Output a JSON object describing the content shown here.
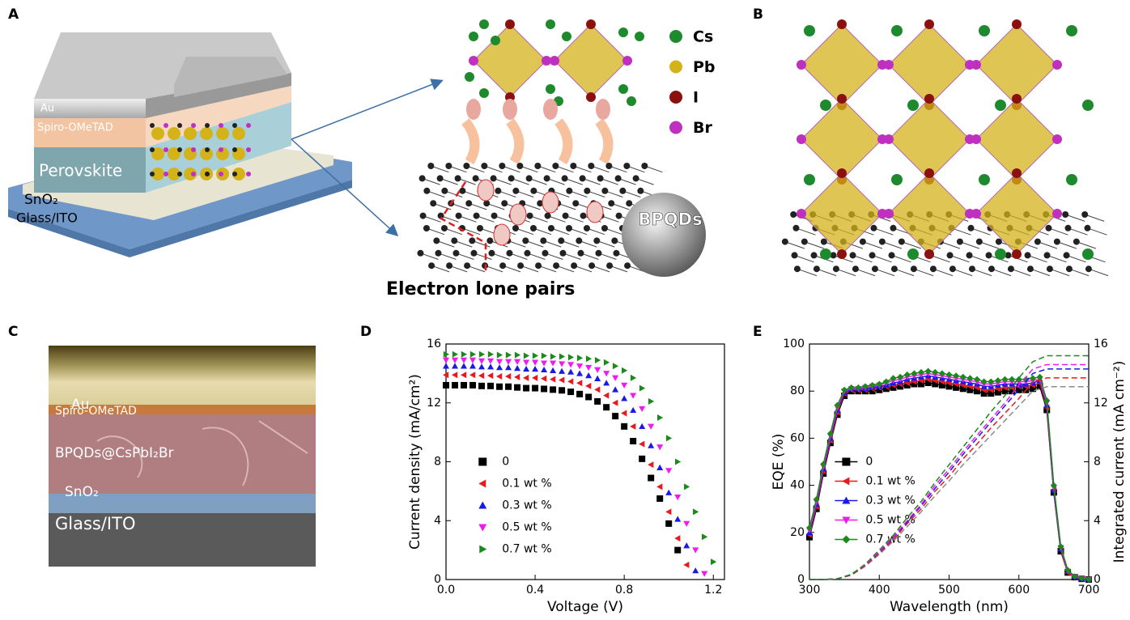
{
  "panel_labels": [
    "A",
    "B",
    "C",
    "D",
    "E"
  ],
  "panel_a": {
    "layers": [
      "Au",
      "Spiro-OMeTAD",
      "Perovskite",
      "SnO₂",
      "Glass/ITO"
    ],
    "legend": [
      {
        "name": "Cs",
        "color": "#1e8a2e"
      },
      {
        "name": "Pb",
        "color": "#d4b21a"
      },
      {
        "name": "I",
        "color": "#8b1010"
      },
      {
        "name": "Br",
        "color": "#c030c0"
      }
    ],
    "quantum_dot_label": "BPQDs",
    "caption": "Electron lone pairs"
  },
  "panel_c": {
    "layers": [
      "Au",
      "Spiro-OMeTAD",
      "BPQDs@CsPbI₂Br",
      "SnO₂",
      "Glass/ITO"
    ]
  },
  "chart_data": [
    {
      "type": "scatter",
      "xlabel": "Voltage (V)",
      "ylabel": "Current density (mA/cm²)",
      "x": [
        0,
        0.04,
        0.08,
        0.12,
        0.16,
        0.2,
        0.24,
        0.28,
        0.32,
        0.36,
        0.4,
        0.44,
        0.48,
        0.52,
        0.56,
        0.6,
        0.64,
        0.68,
        0.72,
        0.76,
        0.8,
        0.84,
        0.88,
        0.92,
        0.96,
        1.0,
        1.04,
        1.08,
        1.12,
        1.16,
        1.2,
        1.24
      ],
      "series": [
        {
          "name": "0",
          "color": "#000000",
          "marker": "square",
          "values": [
            13.2,
            13.2,
            13.2,
            13.2,
            13.15,
            13.15,
            13.1,
            13.1,
            13.05,
            13.0,
            13.0,
            12.95,
            12.9,
            12.85,
            12.75,
            12.6,
            12.4,
            12.1,
            11.7,
            11.1,
            10.4,
            9.4,
            8.2,
            6.9,
            5.5,
            3.8,
            2.0,
            null,
            null,
            null,
            null,
            null
          ]
        },
        {
          "name": "0.1 wt %",
          "color": "#e8191c",
          "marker": "triangle-left",
          "values": [
            13.9,
            13.9,
            13.9,
            13.9,
            13.85,
            13.85,
            13.8,
            13.8,
            13.75,
            13.7,
            13.7,
            13.65,
            13.6,
            13.55,
            13.45,
            13.35,
            13.15,
            12.9,
            12.5,
            12.0,
            11.3,
            10.4,
            9.2,
            7.8,
            6.3,
            4.6,
            2.8,
            1.0,
            null,
            null,
            null,
            null
          ]
        },
        {
          "name": "0.3 wt %",
          "color": "#1a1ae6",
          "marker": "triangle-up",
          "values": [
            14.5,
            14.5,
            14.5,
            14.5,
            14.45,
            14.45,
            14.4,
            14.4,
            14.35,
            14.3,
            14.3,
            14.25,
            14.2,
            14.15,
            14.1,
            14.0,
            13.85,
            13.65,
            13.35,
            12.9,
            12.3,
            11.5,
            10.4,
            9.1,
            7.6,
            5.9,
            4.1,
            2.3,
            0.6,
            null,
            null,
            null
          ]
        },
        {
          "name": "0.5 wt %",
          "color": "#f01af0",
          "marker": "triangle-down",
          "values": [
            14.9,
            14.9,
            14.9,
            14.9,
            14.85,
            14.85,
            14.8,
            14.8,
            14.8,
            14.75,
            14.75,
            14.7,
            14.7,
            14.65,
            14.6,
            14.5,
            14.4,
            14.25,
            14.0,
            13.7,
            13.2,
            12.5,
            11.6,
            10.4,
            9.0,
            7.4,
            5.6,
            3.8,
            2.0,
            0.4,
            null,
            null
          ]
        },
        {
          "name": "0.7 wt %",
          "color": "#1a8a1a",
          "marker": "triangle-right",
          "values": [
            15.3,
            15.3,
            15.3,
            15.3,
            15.3,
            15.3,
            15.25,
            15.25,
            15.25,
            15.2,
            15.2,
            15.2,
            15.15,
            15.15,
            15.1,
            15.05,
            15.0,
            14.9,
            14.75,
            14.5,
            14.2,
            13.7,
            13.0,
            12.1,
            11.0,
            9.6,
            8.0,
            6.3,
            4.6,
            2.9,
            1.2,
            null
          ]
        }
      ],
      "xlim": [
        0,
        1.25
      ],
      "ylim": [
        0,
        16
      ],
      "xticks": [
        {
          "value": 0,
          "label": "0.0"
        },
        0.4,
        0.8,
        1.2
      ],
      "yticks": [
        0,
        4,
        8,
        12,
        16
      ],
      "legend": "center-left"
    },
    {
      "type": "line",
      "xlabel": "Wavelength (nm)",
      "ylabel": "EQE (%)",
      "y2label": "Integrated current (mA cm⁻²)",
      "x": [
        300,
        310,
        320,
        330,
        340,
        350,
        360,
        370,
        380,
        390,
        400,
        410,
        420,
        430,
        440,
        450,
        460,
        470,
        480,
        490,
        500,
        510,
        520,
        530,
        540,
        550,
        560,
        570,
        580,
        590,
        600,
        610,
        620,
        630,
        640,
        650,
        660,
        670,
        680,
        690,
        700
      ],
      "series": [
        {
          "name": "0",
          "color": "#000000",
          "marker": "square",
          "values": [
            18,
            30,
            45,
            58,
            70,
            78,
            80,
            80,
            80,
            80,
            80.5,
            81,
            81.5,
            82,
            82.5,
            83,
            83,
            83.5,
            83,
            82.5,
            82,
            81.5,
            81,
            80.5,
            80,
            79,
            79,
            79.5,
            80,
            80,
            80.5,
            80.5,
            81,
            82,
            72,
            37,
            12,
            3,
            1,
            0.3,
            0
          ]
        },
        {
          "name": "0.1 wt %",
          "color": "#e8191c",
          "marker": "triangle-left",
          "values": [
            19,
            31,
            46,
            59,
            71,
            79,
            80.5,
            80.5,
            80.5,
            81,
            81.5,
            82,
            82.5,
            83,
            83.5,
            84,
            84.5,
            85,
            84.5,
            84,
            83.5,
            83,
            82.5,
            82,
            81.5,
            80.5,
            80.5,
            81,
            81.5,
            81.5,
            82,
            82,
            82.5,
            83.5,
            73,
            38,
            12.5,
            3,
            1,
            0.3,
            0
          ]
        },
        {
          "name": "0.3 wt %",
          "color": "#1a1ae6",
          "marker": "triangle-up",
          "values": [
            20,
            32,
            47,
            60,
            72,
            79.5,
            81,
            81,
            81,
            81.5,
            82,
            82.5,
            83.5,
            84,
            85,
            85.5,
            86,
            86.5,
            86,
            85.5,
            85,
            84.5,
            84,
            83.5,
            83,
            82,
            82,
            82.5,
            83,
            83,
            83,
            83,
            83.5,
            84.5,
            74,
            38,
            13,
            3.5,
            1.2,
            0.4,
            0
          ]
        },
        {
          "name": "0.5 wt %",
          "color": "#f01af0",
          "marker": "triangle-down",
          "values": [
            21,
            33,
            48,
            61,
            73,
            80,
            81,
            81,
            81.5,
            82,
            82.5,
            83.5,
            84.5,
            85,
            86,
            86.5,
            87,
            87.5,
            87,
            86.5,
            86,
            85.5,
            85,
            84.5,
            84,
            83,
            83,
            83.5,
            84,
            84,
            84,
            84,
            84.5,
            85,
            75,
            39,
            13.5,
            3.5,
            1.2,
            0.4,
            0
          ]
        },
        {
          "name": "0.7 wt %",
          "color": "#1a8a1a",
          "marker": "diamond",
          "values": [
            22,
            34,
            49,
            62,
            74,
            80.5,
            81.5,
            81.5,
            82,
            82.5,
            83,
            84,
            85.5,
            86,
            87,
            87.5,
            88,
            88.5,
            88,
            87.5,
            87,
            86.5,
            86,
            85.5,
            85,
            84,
            84,
            84.5,
            85,
            85,
            85,
            85,
            85.5,
            86,
            76,
            40,
            14,
            4,
            1.3,
            0.5,
            0
          ]
        },
        {
          "color": "#8c8c8c",
          "dash": true,
          "axis": "y2",
          "x": [
            300,
            320,
            340,
            360,
            380,
            400,
            420,
            440,
            460,
            480,
            500,
            520,
            540,
            560,
            580,
            600,
            620,
            640,
            660,
            680,
            700
          ],
          "values": [
            0,
            0,
            0.05,
            0.3,
            0.9,
            1.7,
            2.6,
            3.6,
            4.6,
            5.7,
            6.7,
            7.8,
            8.8,
            9.8,
            10.8,
            11.8,
            12.8,
            13.1,
            13.1,
            13.1,
            13.1
          ]
        },
        {
          "color": "#e8191c",
          "dash": true,
          "axis": "y2",
          "x": [
            300,
            320,
            340,
            360,
            380,
            400,
            420,
            440,
            460,
            480,
            500,
            520,
            540,
            560,
            580,
            600,
            620,
            640,
            660,
            680,
            700
          ],
          "values": [
            0,
            0,
            0.05,
            0.3,
            0.95,
            1.8,
            2.7,
            3.8,
            4.8,
            6.0,
            7.0,
            8.2,
            9.2,
            10.3,
            11.3,
            12.3,
            13.4,
            13.7,
            13.7,
            13.7,
            13.7
          ]
        },
        {
          "color": "#1a1ae6",
          "dash": true,
          "axis": "y2",
          "x": [
            300,
            320,
            340,
            360,
            380,
            400,
            420,
            440,
            460,
            480,
            500,
            520,
            540,
            560,
            580,
            600,
            620,
            640,
            660,
            680,
            700
          ],
          "values": [
            0,
            0,
            0.05,
            0.35,
            1.0,
            1.85,
            2.85,
            3.9,
            5.0,
            6.2,
            7.3,
            8.5,
            9.6,
            10.7,
            11.8,
            12.9,
            14.0,
            14.3,
            14.3,
            14.3,
            14.3
          ]
        },
        {
          "color": "#f01af0",
          "dash": true,
          "axis": "y2",
          "x": [
            300,
            320,
            340,
            360,
            380,
            400,
            420,
            440,
            460,
            480,
            500,
            520,
            540,
            560,
            580,
            600,
            620,
            640,
            660,
            680,
            700
          ],
          "values": [
            0,
            0,
            0.05,
            0.35,
            1.0,
            1.9,
            2.9,
            4.0,
            5.1,
            6.4,
            7.5,
            8.7,
            9.8,
            10.9,
            12.0,
            13.2,
            14.3,
            14.6,
            14.6,
            14.6,
            14.6
          ]
        },
        {
          "color": "#1a8a1a",
          "dash": true,
          "axis": "y2",
          "x": [
            300,
            320,
            340,
            360,
            380,
            400,
            420,
            440,
            460,
            480,
            500,
            520,
            540,
            560,
            580,
            600,
            620,
            640,
            660,
            680,
            700
          ],
          "values": [
            0,
            0,
            0.05,
            0.35,
            1.05,
            2.0,
            3.0,
            4.2,
            5.3,
            6.6,
            7.8,
            9.0,
            10.2,
            11.4,
            12.5,
            13.7,
            14.8,
            15.2,
            15.2,
            15.2,
            15.2
          ]
        }
      ],
      "xlim": [
        300,
        700
      ],
      "ylim": [
        0,
        100
      ],
      "y2lim": [
        0,
        16
      ],
      "xticks": [
        300,
        400,
        500,
        600,
        700
      ],
      "yticks": [
        0,
        20,
        40,
        60,
        80,
        100
      ],
      "y2ticks": [
        0,
        4,
        8,
        12,
        16
      ],
      "legend": "center-left"
    }
  ]
}
